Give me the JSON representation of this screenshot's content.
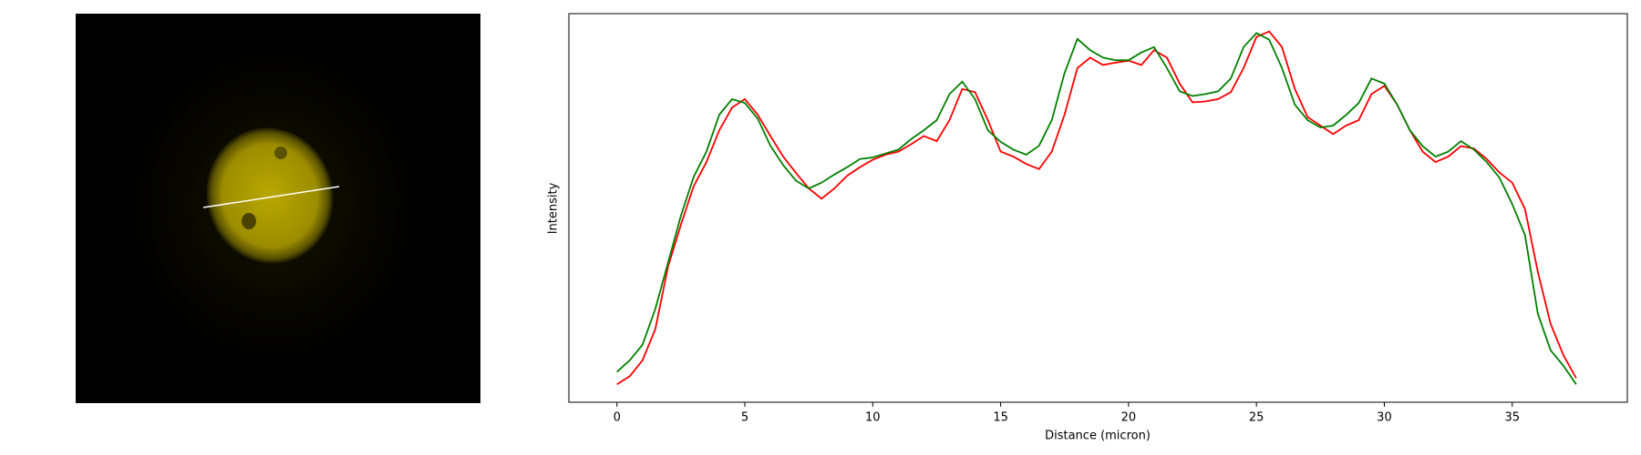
{
  "chart_data": {
    "type": "line",
    "xlabel": "Distance (micron)",
    "ylabel": "Intensity",
    "xlim": [
      -1.88,
      39.5
    ],
    "xticks": [
      0,
      5,
      10,
      15,
      20,
      25,
      30,
      35
    ],
    "ylim": [
      0,
      100
    ],
    "x": [
      0,
      0.5,
      1,
      1.5,
      2,
      2.5,
      3,
      3.5,
      4,
      4.5,
      5,
      5.5,
      6,
      6.5,
      7,
      7.5,
      8,
      8.5,
      9,
      9.5,
      10,
      10.5,
      11,
      11.5,
      12,
      12.5,
      13,
      13.5,
      14,
      14.5,
      15,
      15.5,
      16,
      16.5,
      17,
      17.5,
      18,
      18.5,
      19,
      19.5,
      20,
      20.5,
      21,
      21.5,
      22,
      22.5,
      23,
      23.5,
      24,
      24.5,
      25,
      25.5,
      26,
      26.5,
      27,
      27.5,
      28,
      28.5,
      29,
      29.5,
      30,
      30.5,
      31,
      31.5,
      32,
      32.5,
      33,
      33.5,
      34,
      34.5,
      35,
      35.5,
      36,
      36.5,
      37,
      37.5
    ],
    "series": [
      {
        "color": "#ff0000",
        "values": [
          4.6,
          6.7,
          10.8,
          18.8,
          35,
          45.7,
          55.6,
          61.8,
          70,
          75.8,
          78,
          74,
          68.5,
          63.2,
          59,
          55,
          52.4,
          55,
          58.3,
          60.5,
          62.4,
          63.7,
          64.5,
          66.4,
          68.5,
          67.2,
          72.6,
          80.6,
          79.8,
          72.6,
          64.5,
          63.2,
          61.3,
          60,
          64.5,
          74,
          86,
          88.7,
          86.8,
          87.4,
          87.9,
          86.8,
          90.6,
          88.7,
          82,
          77.2,
          77.4,
          78,
          79.8,
          86,
          94,
          95.4,
          91.4,
          80.6,
          73.4,
          71.2,
          69,
          71.2,
          72.6,
          79.3,
          81.4,
          76.6,
          70,
          64.5,
          61.8,
          63.2,
          65.9,
          65.3,
          62.6,
          59.1,
          56.5,
          49.7,
          33.6,
          20.2,
          12.1,
          6.2
        ]
      },
      {
        "color": "#008000",
        "values": [
          7.8,
          10.8,
          14.8,
          24,
          36,
          48,
          58,
          64.5,
          74,
          78,
          77,
          73,
          66,
          61,
          57,
          55,
          56.5,
          58.6,
          60.5,
          62.6,
          63,
          64,
          65,
          67.7,
          70,
          72.6,
          79.3,
          82.5,
          78,
          70,
          67,
          65,
          63.7,
          66,
          72.6,
          84.7,
          93.5,
          90.6,
          88.7,
          88,
          88,
          90,
          91.4,
          86,
          80,
          78.8,
          79.3,
          80,
          83.3,
          91.4,
          95,
          93.3,
          86,
          76.6,
          72.6,
          70.7,
          71.2,
          73.9,
          77,
          83.3,
          82,
          76.6,
          70,
          65.9,
          63.2,
          64.5,
          67.2,
          65,
          61.8,
          57.8,
          51,
          43,
          22.8,
          13.4,
          9.4,
          4.6
        ]
      }
    ]
  }
}
